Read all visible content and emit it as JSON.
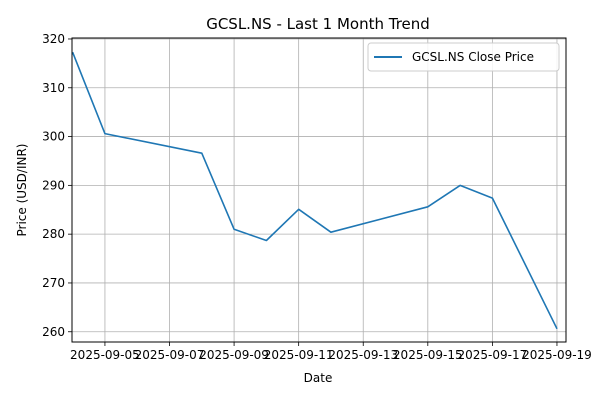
{
  "chart_data": {
    "type": "line",
    "title": "GCSL.NS - Last 1 Month Trend",
    "xlabel": "Date",
    "ylabel": "Price (USD/INR)",
    "x_tick_labels": [
      "2025-09-05",
      "2025-09-07",
      "2025-09-09",
      "2025-09-11",
      "2025-09-13",
      "2025-09-15",
      "2025-09-17",
      "2025-09-19"
    ],
    "y_ticks": [
      260,
      270,
      280,
      290,
      300,
      310,
      320
    ],
    "ylim": [
      257.9,
      320.2
    ],
    "xlim": [
      "2025-09-03",
      "2025-09-19"
    ],
    "grid": true,
    "legend_position": "top-right",
    "series": [
      {
        "name": "GCSL.NS Close Price",
        "color": "#1f77b4",
        "x": [
          "2025-09-04",
          "2025-09-05",
          "2025-09-08",
          "2025-09-09",
          "2025-09-10",
          "2025-09-11",
          "2025-09-12",
          "2025-09-15",
          "2025-09-16",
          "2025-09-17",
          "2025-09-19"
        ],
        "y": [
          317.3,
          300.6,
          296.6,
          281.0,
          278.7,
          285.1,
          280.4,
          285.6,
          290.0,
          287.4,
          260.6
        ]
      }
    ]
  }
}
